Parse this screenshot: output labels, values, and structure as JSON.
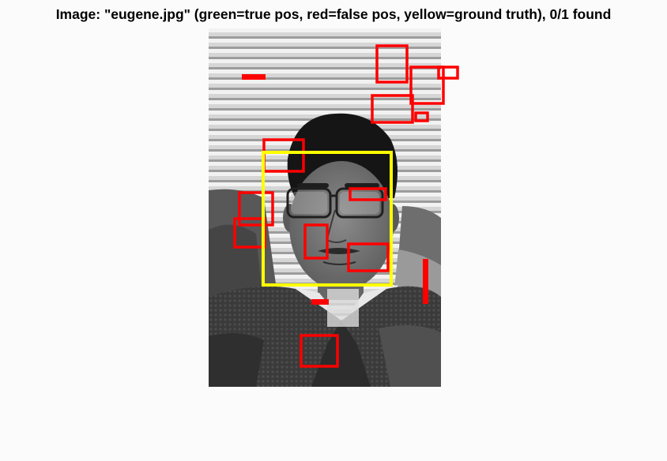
{
  "figure": {
    "title": "Image: \"eugene.jpg\" (green=true pos, red=false pos, yellow=ground truth), 0/1 found"
  },
  "colors": {
    "false_positive": "#ff0000",
    "ground_truth": "#ffff00",
    "true_positive": "#00ff00"
  },
  "detections": {
    "ground_truth_count": 1,
    "true_positive_count": 0,
    "false_positive_count": 17
  }
}
